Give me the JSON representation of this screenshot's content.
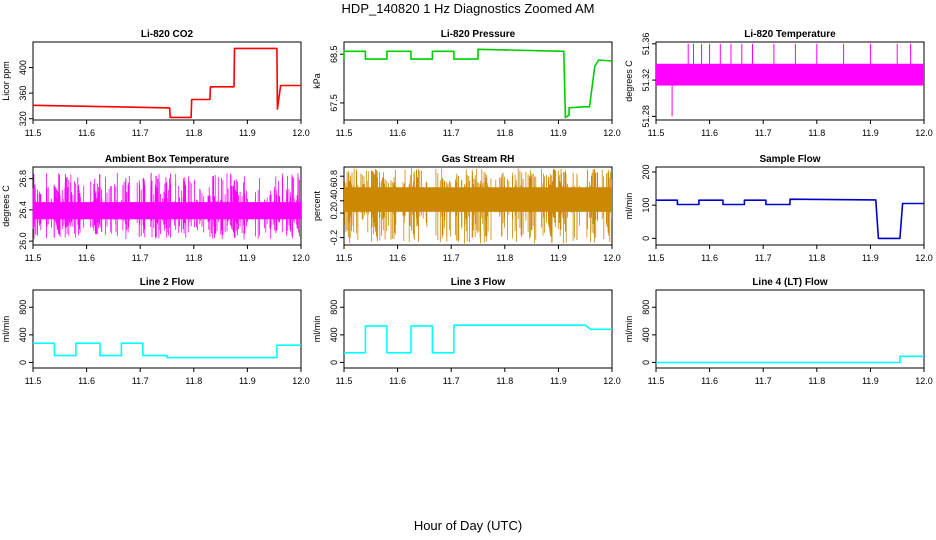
{
  "header": {
    "title": "HDP_140820  1 Hz Diagnostics Zoomed AM"
  },
  "footer": {
    "xlabel": "Hour of Day (UTC)"
  },
  "chart_data": [
    {
      "type": "line",
      "title": "Li-820 CO2",
      "ylabel": "Licor ppm",
      "color": "#ff0000",
      "x": [
        11.5,
        11.755,
        11.756,
        11.795,
        11.796,
        11.83,
        11.831,
        11.875,
        11.876,
        11.955,
        11.956,
        11.962,
        12.0
      ],
      "y": [
        341,
        337,
        322,
        322,
        350,
        350,
        370,
        370,
        430,
        430,
        335,
        372,
        372
      ],
      "xlim": [
        11.5,
        12.0
      ],
      "ylim": [
        318,
        440
      ],
      "xticks": [
        "11.5",
        "11.6",
        "11.7",
        "11.8",
        "11.9",
        "12.0"
      ],
      "yticks": [
        "320",
        "360",
        "400"
      ]
    },
    {
      "type": "line",
      "title": "Li-820 Pressure",
      "ylabel": "kPa",
      "color": "#00cc00",
      "x": [
        11.5,
        11.5,
        11.52,
        11.52,
        11.54,
        11.54,
        11.58,
        11.58,
        11.625,
        11.625,
        11.665,
        11.665,
        11.705,
        11.705,
        11.75,
        11.75,
        11.91,
        11.913,
        11.92,
        11.92,
        11.948,
        11.952,
        11.958,
        11.968,
        11.975,
        12.0
      ],
      "y": [
        68.38,
        68.56,
        68.56,
        68.56,
        68.56,
        68.4,
        68.4,
        68.56,
        68.56,
        68.4,
        68.4,
        68.56,
        68.56,
        68.4,
        68.4,
        68.6,
        68.56,
        67.2,
        67.25,
        67.4,
        67.42,
        67.42,
        67.42,
        68.25,
        68.38,
        68.36
      ],
      "xlim": [
        11.5,
        12.0
      ],
      "ylim": [
        67.15,
        68.75
      ],
      "xticks": [
        "11.5",
        "11.6",
        "11.7",
        "11.8",
        "11.9",
        "12.0"
      ],
      "yticks": [
        "67.5",
        "68.5"
      ]
    },
    {
      "type": "line",
      "title": "Li-820 Temperature",
      "ylabel": "degrees C",
      "color": "#ff00ff",
      "band": [
        51.314,
        51.338
      ],
      "x": [
        11.53,
        11.56,
        11.57,
        11.585,
        11.6,
        11.62,
        11.64,
        11.66,
        11.68,
        11.72,
        11.76,
        11.8,
        11.85,
        11.9,
        11.95,
        11.975
      ],
      "y": [
        51.28,
        51.36,
        51.36,
        51.36,
        51.36,
        51.36,
        51.36,
        51.36,
        51.36,
        51.36,
        51.36,
        51.36,
        51.36,
        51.36,
        51.36,
        51.36
      ],
      "xlim": [
        11.5,
        12.0
      ],
      "ylim": [
        51.276,
        51.362
      ],
      "xticks": [
        "11.5",
        "11.6",
        "11.7",
        "11.8",
        "11.9",
        "12.0"
      ],
      "yticks": [
        "51.28",
        "51.32",
        "51.36"
      ]
    },
    {
      "type": "line",
      "title": "Ambient Box Temperature",
      "ylabel": "degrees C",
      "color": "#ff00ff",
      "band": [
        26.28,
        26.5
      ],
      "spikes": [
        26.02,
        26.88
      ],
      "xlim": [
        11.5,
        12.0
      ],
      "ylim": [
        25.95,
        26.95
      ],
      "xticks": [
        "11.5",
        "11.6",
        "11.7",
        "11.8",
        "11.9",
        "12.0"
      ],
      "yticks": [
        "26.0",
        "26.4",
        "26.8"
      ]
    },
    {
      "type": "line",
      "title": "Gas Stream RH",
      "ylabel": "percent",
      "color": "#cc8800",
      "band": [
        0.22,
        0.62
      ],
      "spikes": [
        -0.3,
        0.93
      ],
      "xlim": [
        11.5,
        12.0
      ],
      "ylim": [
        -0.32,
        0.95
      ],
      "xticks": [
        "11.5",
        "11.6",
        "11.7",
        "11.8",
        "11.9",
        "12.0"
      ],
      "yticks": [
        "-0.2",
        "0.2",
        "0.4",
        "0.6",
        "0.8"
      ]
    },
    {
      "type": "line",
      "title": "Sample Flow",
      "ylabel": "ml/min",
      "color": "#0000cc",
      "x": [
        11.5,
        11.54,
        11.54,
        11.58,
        11.58,
        11.625,
        11.625,
        11.665,
        11.665,
        11.705,
        11.705,
        11.75,
        11.75,
        11.91,
        11.915,
        11.95,
        11.955,
        11.96,
        12.0
      ],
      "y": [
        115,
        115,
        102,
        102,
        115,
        115,
        102,
        102,
        115,
        115,
        102,
        102,
        118,
        116,
        0,
        0,
        0,
        105,
        105
      ],
      "xlim": [
        11.5,
        12.0
      ],
      "ylim": [
        -20,
        215
      ],
      "xticks": [
        "11.5",
        "11.6",
        "11.7",
        "11.8",
        "11.9",
        "12.0"
      ],
      "yticks": [
        "0",
        "100",
        "200"
      ]
    },
    {
      "type": "line",
      "title": "Line 2 Flow",
      "ylabel": "ml/min",
      "color": "#00ffff",
      "x": [
        11.5,
        11.54,
        11.54,
        11.58,
        11.58,
        11.625,
        11.625,
        11.665,
        11.665,
        11.705,
        11.705,
        11.75,
        11.75,
        11.955,
        11.955,
        12.0
      ],
      "y": [
        280,
        280,
        100,
        100,
        280,
        280,
        100,
        100,
        280,
        280,
        100,
        100,
        70,
        70,
        250,
        250
      ],
      "xlim": [
        11.5,
        12.0
      ],
      "ylim": [
        -80,
        1050
      ],
      "xticks": [
        "11.5",
        "11.6",
        "11.7",
        "11.8",
        "11.9",
        "12.0"
      ],
      "yticks": [
        "0",
        "400",
        "800"
      ]
    },
    {
      "type": "line",
      "title": "Line 3 Flow",
      "ylabel": "ml/min",
      "color": "#00ffff",
      "x": [
        11.5,
        11.54,
        11.54,
        11.58,
        11.58,
        11.625,
        11.625,
        11.665,
        11.665,
        11.705,
        11.705,
        11.95,
        11.96,
        12.0
      ],
      "y": [
        140,
        140,
        530,
        530,
        140,
        140,
        530,
        530,
        140,
        140,
        540,
        540,
        480,
        480
      ],
      "xlim": [
        11.5,
        12.0
      ],
      "ylim": [
        -80,
        1050
      ],
      "xticks": [
        "11.5",
        "11.6",
        "11.7",
        "11.8",
        "11.9",
        "12.0"
      ],
      "yticks": [
        "0",
        "400",
        "800"
      ]
    },
    {
      "type": "line",
      "title": "Line 4 (LT) Flow",
      "ylabel": "ml/min",
      "color": "#00ffff",
      "x": [
        11.5,
        11.955,
        11.955,
        12.0
      ],
      "y": [
        0,
        0,
        90,
        90
      ],
      "xlim": [
        11.5,
        12.0
      ],
      "ylim": [
        -80,
        1050
      ],
      "xticks": [
        "11.5",
        "11.6",
        "11.7",
        "11.8",
        "11.9",
        "12.0"
      ],
      "yticks": [
        "0",
        "400",
        "800"
      ]
    }
  ]
}
